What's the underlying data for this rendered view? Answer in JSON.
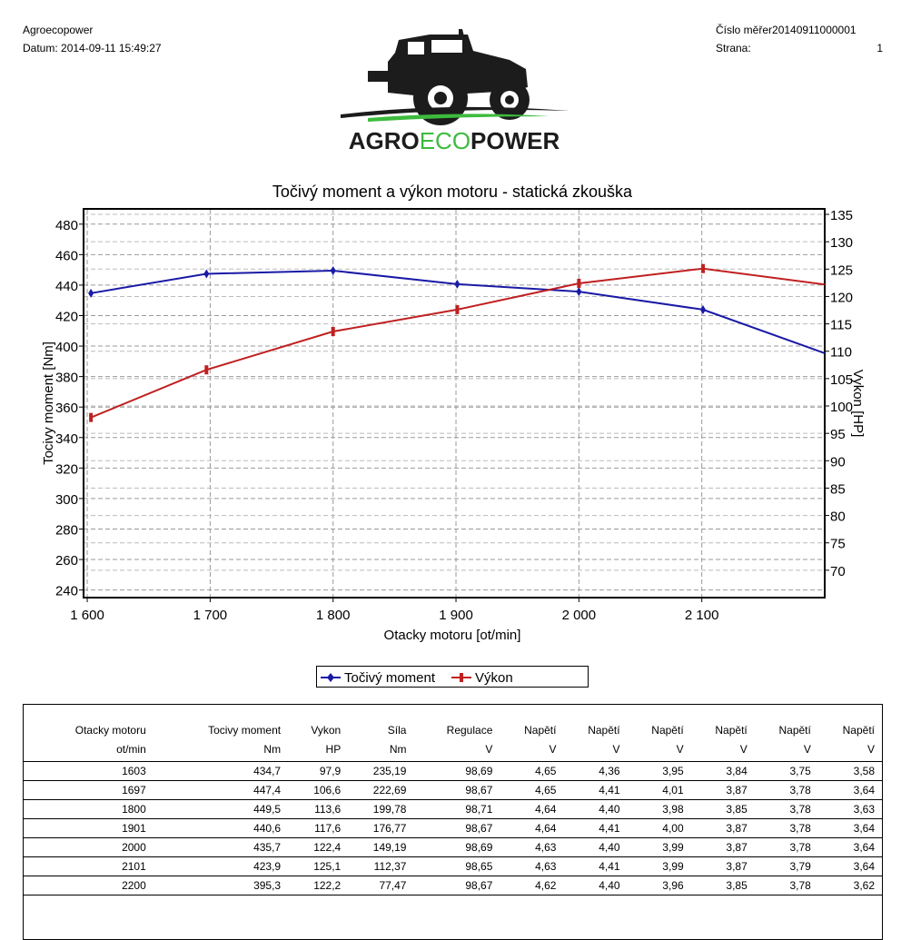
{
  "header": {
    "company": "Agroecopower",
    "date_label": "Datum:",
    "date_value": "2014-09-11 15:49:27",
    "cislo_label": "Číslo měřer",
    "cislo_value": "20140911000001",
    "strana_label": "Strana:",
    "strana_value": "1"
  },
  "logo": {
    "text_left": "AGRO",
    "text_mid": "ECO",
    "text_right": "POWER",
    "accent": "#3dbb3d"
  },
  "chart_data": {
    "type": "line",
    "title": "Točivý moment a výkon motoru - statická zkouška",
    "xlabel": "Otacky motoru [ot/min]",
    "ylabel_left": "Tocivy moment [Nm]",
    "ylabel_right": "Vykon [HP]",
    "xlim": [
      1597,
      2200
    ],
    "ylim_left": [
      235,
      490
    ],
    "ylim_right": [
      65,
      136
    ],
    "x_ticks": [
      1600,
      1700,
      1800,
      1900,
      2000,
      2100
    ],
    "x_tick_labels": [
      "1 600",
      "1 700",
      "1 800",
      "1 900",
      "2 000",
      "2 100"
    ],
    "y_left_ticks": [
      240,
      260,
      280,
      300,
      320,
      340,
      360,
      380,
      400,
      420,
      440,
      460,
      480
    ],
    "y_right_ticks": [
      70,
      75,
      80,
      85,
      90,
      95,
      100,
      105,
      110,
      115,
      120,
      125,
      130,
      135
    ],
    "grid": true,
    "legend_position": "bottom",
    "series": [
      {
        "name": "Točivý moment",
        "axis": "left",
        "color": "#1a1aa6",
        "x": [
          1603,
          1697,
          1800,
          1901,
          2000,
          2101,
          2200
        ],
        "values": [
          434.7,
          447.4,
          449.5,
          440.6,
          435.7,
          423.9,
          395.3
        ]
      },
      {
        "name": "Výkon",
        "axis": "right",
        "color": "#c02020",
        "x": [
          1603,
          1697,
          1800,
          1901,
          2000,
          2101,
          2200
        ],
        "values": [
          97.9,
          106.6,
          113.6,
          117.6,
          122.4,
          125.1,
          122.2
        ]
      }
    ]
  },
  "table": {
    "headers": [
      "Otacky motoru",
      "Tocivy moment",
      "Vykon",
      "Síla",
      "Regulace",
      "Napětí",
      "Napětí",
      "Napětí",
      "Napětí",
      "Napětí",
      "Napětí"
    ],
    "units": [
      "ot/min",
      "Nm",
      "HP",
      "Nm",
      "V",
      "V",
      "V",
      "V",
      "V",
      "V",
      "V"
    ],
    "rows": [
      [
        "1603",
        "434,7",
        "97,9",
        "235,19",
        "98,69",
        "4,65",
        "4,36",
        "3,95",
        "3,84",
        "3,75",
        "3,58"
      ],
      [
        "1697",
        "447,4",
        "106,6",
        "222,69",
        "98,67",
        "4,65",
        "4,41",
        "4,01",
        "3,87",
        "3,78",
        "3,64"
      ],
      [
        "1800",
        "449,5",
        "113,6",
        "199,78",
        "98,71",
        "4,64",
        "4,40",
        "3,98",
        "3,85",
        "3,78",
        "3,63"
      ],
      [
        "1901",
        "440,6",
        "117,6",
        "176,77",
        "98,67",
        "4,64",
        "4,41",
        "4,00",
        "3,87",
        "3,78",
        "3,64"
      ],
      [
        "2000",
        "435,7",
        "122,4",
        "149,19",
        "98,69",
        "4,63",
        "4,40",
        "3,99",
        "3,87",
        "3,78",
        "3,64"
      ],
      [
        "2101",
        "423,9",
        "125,1",
        "112,37",
        "98,65",
        "4,63",
        "4,41",
        "3,99",
        "3,87",
        "3,79",
        "3,64"
      ],
      [
        "2200",
        "395,3",
        "122,2",
        "77,47",
        "98,67",
        "4,62",
        "4,40",
        "3,96",
        "3,85",
        "3,78",
        "3,62"
      ]
    ]
  }
}
